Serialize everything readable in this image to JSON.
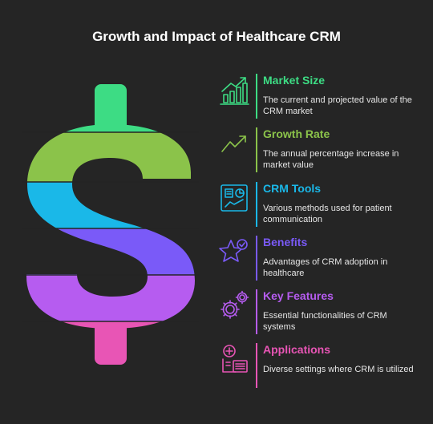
{
  "title": "Growth and Impact of Healthcare CRM",
  "colors": {
    "background": "#252525",
    "green": "#3ddc84",
    "lime": "#8bc34a",
    "cyan": "#1ab8e8",
    "purple": "#7a5af8",
    "violet": "#b65cf0",
    "pink": "#e855b5"
  },
  "items": [
    {
      "heading": "Market Size",
      "description": "The current and projected value of the CRM market",
      "icon": "bar-chart-growth-icon",
      "color": "#3ddc84"
    },
    {
      "heading": "Growth Rate",
      "description": "The annual percentage increase in market value",
      "icon": "trend-up-icon",
      "color": "#8bc34a"
    },
    {
      "heading": "CRM Tools",
      "description": "Various methods used for patient communication",
      "icon": "dashboard-icon",
      "color": "#1ab8e8"
    },
    {
      "heading": "Benefits",
      "description": "Advantages of CRM adoption in healthcare",
      "icon": "star-check-icon",
      "color": "#7a5af8"
    },
    {
      "heading": "Key Features",
      "description": "Essential functionalities of CRM systems",
      "icon": "gears-icon",
      "color": "#b65cf0"
    },
    {
      "heading": "Applications",
      "description": "Diverse settings where CRM is utilized",
      "icon": "medical-device-icon",
      "color": "#e855b5"
    }
  ]
}
